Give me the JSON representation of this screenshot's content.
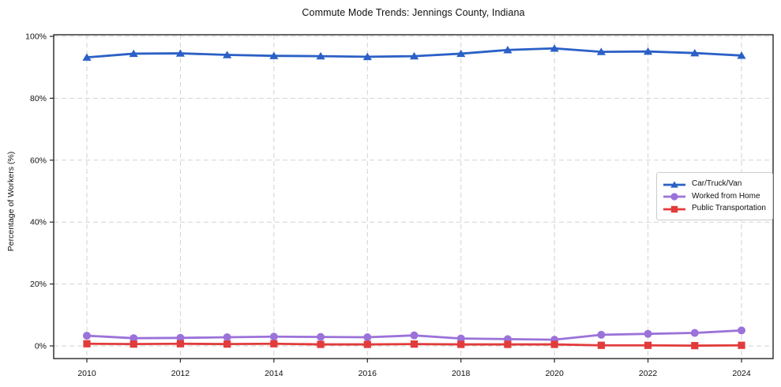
{
  "figure": {
    "title": "Commute Mode Trends: Jennings County, Indiana"
  },
  "chart_data": {
    "type": "line",
    "title": "Commute Mode Trends: Jennings County, Indiana",
    "xlabel": "",
    "ylabel": "Percentage of Workers (%)",
    "x": [
      2010,
      2011,
      2012,
      2013,
      2014,
      2015,
      2016,
      2017,
      2018,
      2019,
      2020,
      2021,
      2022,
      2023,
      2024
    ],
    "x_tick_labels": [
      "2010",
      "2012",
      "2014",
      "2016",
      "2018",
      "2020",
      "2022",
      "2024"
    ],
    "y_ticks": [
      0,
      20,
      40,
      60,
      80,
      100
    ],
    "y_tick_labels": [
      "0%",
      "20%",
      "40%",
      "60%",
      "80%",
      "100%"
    ],
    "ylim": [
      0,
      100
    ],
    "grid": true,
    "grid_style": "dashed",
    "legend_position": "right-center",
    "series": [
      {
        "name": "Car/Truck/Van",
        "color": "#2b60c6",
        "marker": "triangle",
        "values": [
          93.2,
          94.4,
          94.5,
          94.0,
          93.7,
          93.6,
          93.4,
          93.6,
          94.4,
          95.6,
          96.1,
          95.0,
          95.1,
          94.6,
          93.8
        ]
      },
      {
        "name": "Worked from Home",
        "color": "#9b72d9",
        "marker": "circle",
        "values": [
          3.3,
          2.5,
          2.6,
          2.8,
          3.0,
          2.9,
          2.8,
          3.4,
          2.4,
          2.2,
          2.0,
          3.6,
          3.9,
          4.2,
          5.0
        ]
      },
      {
        "name": "Public Transportation",
        "color": "#e23b3b",
        "marker": "square",
        "values": [
          0.7,
          0.6,
          0.7,
          0.6,
          0.7,
          0.5,
          0.5,
          0.6,
          0.5,
          0.5,
          0.5,
          0.2,
          0.2,
          0.1,
          0.2
        ]
      }
    ]
  }
}
